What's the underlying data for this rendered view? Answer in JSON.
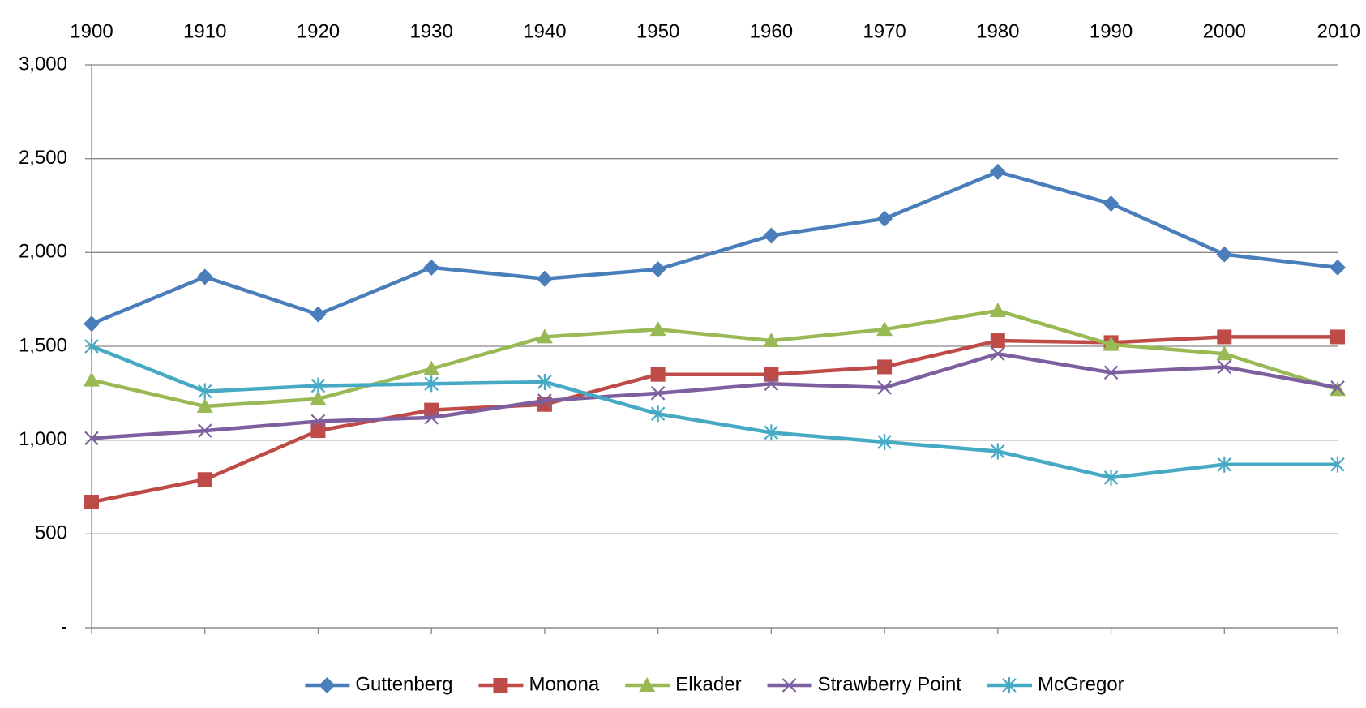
{
  "chart_data": {
    "type": "line",
    "x": [
      1900,
      1910,
      1920,
      1930,
      1940,
      1950,
      1960,
      1970,
      1980,
      1990,
      2000,
      2010
    ],
    "xlim": [
      1900,
      2010
    ],
    "xticks": [
      1900,
      1910,
      1920,
      1930,
      1940,
      1950,
      1960,
      1970,
      1980,
      1990,
      2000,
      2010
    ],
    "ylim": [
      0,
      3000
    ],
    "yticks": [
      {
        "value": 0,
        "label": "-"
      },
      500,
      {
        "value": 1000,
        "label": "1,000"
      },
      {
        "value": 1500,
        "label": "1,500"
      },
      {
        "value": 2000,
        "label": "2,000"
      },
      {
        "value": 2500,
        "label": "2,500"
      },
      {
        "value": 3000,
        "label": "3,000"
      }
    ],
    "grid": true,
    "legend": "bottom",
    "series": [
      {
        "name": "Guttenberg",
        "color": "#4a7ebb",
        "marker": "diamond",
        "values": [
          1620,
          1870,
          1670,
          1920,
          1860,
          1910,
          2090,
          2180,
          2430,
          2260,
          1990,
          1920
        ]
      },
      {
        "name": "Monona",
        "color": "#be4b48",
        "marker": "square",
        "values": [
          670,
          790,
          1050,
          1160,
          1190,
          1350,
          1350,
          1390,
          1530,
          1520,
          1550,
          1550
        ]
      },
      {
        "name": "Elkader",
        "color": "#98b954",
        "marker": "triangle",
        "values": [
          1320,
          1180,
          1220,
          1380,
          1550,
          1590,
          1530,
          1590,
          1690,
          1510,
          1460,
          1270
        ]
      },
      {
        "name": "Strawberry Point",
        "color": "#7d5fa0",
        "marker": "x",
        "values": [
          1010,
          1050,
          1100,
          1120,
          1210,
          1250,
          1300,
          1280,
          1460,
          1360,
          1390,
          1280
        ]
      },
      {
        "name": "McGregor",
        "color": "#46aac5",
        "marker": "asterisk",
        "values": [
          1500,
          1260,
          1290,
          1300,
          1310,
          1140,
          1040,
          990,
          940,
          800,
          870,
          870
        ]
      }
    ]
  }
}
